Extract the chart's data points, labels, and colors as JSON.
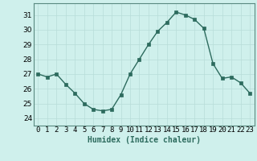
{
  "x": [
    0,
    1,
    2,
    3,
    4,
    5,
    6,
    7,
    8,
    9,
    10,
    11,
    12,
    13,
    14,
    15,
    16,
    17,
    18,
    19,
    20,
    21,
    22,
    23
  ],
  "y": [
    27.0,
    26.8,
    27.0,
    26.3,
    25.7,
    25.0,
    24.6,
    24.5,
    24.6,
    25.6,
    27.0,
    28.0,
    29.0,
    29.9,
    30.5,
    31.2,
    31.0,
    30.7,
    30.1,
    27.7,
    26.7,
    26.8,
    26.4,
    25.7
  ],
  "line_color": "#2d6b5e",
  "marker": "s",
  "markersize": 2.5,
  "linewidth": 1.0,
  "bg_color": "#cff0ec",
  "grid_color": "#b8ddd8",
  "xlabel": "Humidex (Indice chaleur)",
  "xlabel_fontsize": 7,
  "xtick_labels": [
    "0",
    "1",
    "2",
    "3",
    "4",
    "5",
    "6",
    "7",
    "8",
    "9",
    "10",
    "11",
    "12",
    "13",
    "14",
    "15",
    "16",
    "17",
    "18",
    "19",
    "20",
    "21",
    "22",
    "23"
  ],
  "ylim": [
    23.5,
    31.8
  ],
  "yticks": [
    24,
    25,
    26,
    27,
    28,
    29,
    30,
    31
  ],
  "tick_fontsize": 6.5,
  "spine_color": "#5a8a80"
}
